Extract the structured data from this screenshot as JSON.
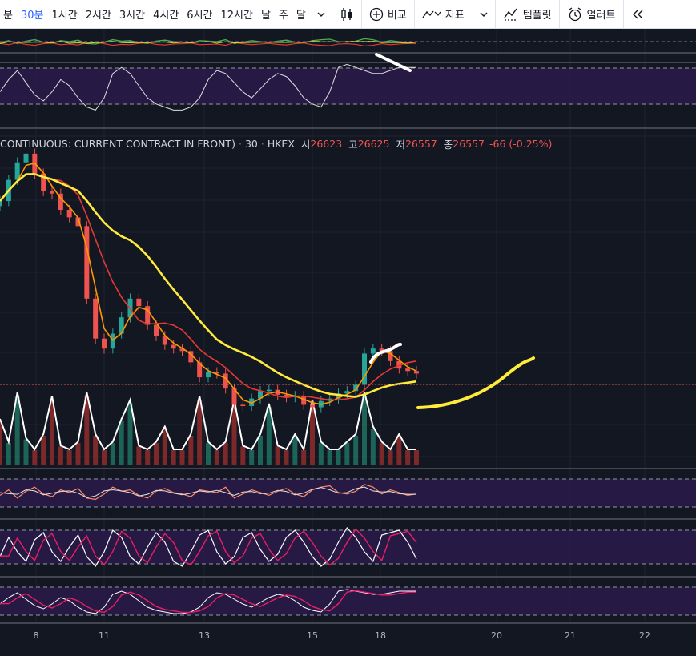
{
  "toolbar": {
    "intervals": [
      {
        "label": "분",
        "active": false
      },
      {
        "label": "30분",
        "active": true
      },
      {
        "label": "1시간",
        "active": false
      },
      {
        "label": "2시간",
        "active": false
      },
      {
        "label": "3시간",
        "active": false
      },
      {
        "label": "4시간",
        "active": false
      },
      {
        "label": "6시간",
        "active": false
      },
      {
        "label": "12시간",
        "active": false
      },
      {
        "label": "날",
        "active": false
      },
      {
        "label": "주",
        "active": false
      },
      {
        "label": "달",
        "active": false
      }
    ],
    "compare_label": "비교",
    "indicators_label": "지표",
    "templates_label": "템플릿",
    "alert_label": "얼러트"
  },
  "legend": {
    "symbol": "CONTINUOUS: CURRENT CONTRACT IN FRONT)",
    "interval": "30",
    "exchange": "HKEX",
    "open_label": "시",
    "open": "26623",
    "high_label": "고",
    "high": "26625",
    "low_label": "저",
    "low": "26557",
    "close_label": "종",
    "close": "26557",
    "change": "-66 (-0.25%)"
  },
  "colors": {
    "background": "#131722",
    "up": "#26a69a",
    "down": "#ef5350",
    "ma_fast": "#ff9800",
    "ma_mid": "#e53935",
    "ma_slow": "#ffeb3b",
    "oscillator_band": "#2a1b4a",
    "drawing_yellow": "#ffeb3b",
    "drawing_white": "#ffffff"
  },
  "chart_data": {
    "type": "candlestick",
    "title": "",
    "x_tick_labels": [
      "8",
      "11",
      "13",
      "15",
      "18",
      "20",
      "21",
      "22"
    ],
    "series": [
      {
        "name": "close",
        "values": [
          26480,
          26650,
          26790,
          26860,
          26700,
          26560,
          26540,
          26410,
          26350,
          26280,
          25700,
          25380,
          25300,
          25420,
          25550,
          25700,
          25640,
          25490,
          25400,
          25330,
          25300,
          25280,
          25190,
          25070,
          25110,
          25100,
          24980,
          24850,
          24840,
          24900,
          24960,
          24970,
          24930,
          24910,
          24920,
          24850,
          24830,
          24880,
          24900,
          24940,
          24960,
          25010,
          25260,
          25300,
          25280,
          25200,
          25140,
          25120,
          25100
        ]
      },
      {
        "name": "volume",
        "values": [
          60,
          30,
          95,
          35,
          20,
          40,
          90,
          25,
          20,
          30,
          95,
          40,
          20,
          30,
          60,
          85,
          25,
          20,
          30,
          50,
          20,
          20,
          40,
          90,
          30,
          20,
          30,
          85,
          25,
          20,
          40,
          80,
          25,
          20,
          40,
          20,
          85,
          30,
          20,
          20,
          30,
          40,
          95,
          50,
          30,
          20,
          40,
          20,
          20
        ]
      },
      {
        "name": "oscillator_1",
        "values": [
          40,
          60,
          30,
          55,
          70,
          45,
          35,
          60,
          50,
          65,
          30,
          25,
          45,
          70,
          55,
          60,
          40,
          30,
          55,
          65,
          50,
          45,
          35,
          60,
          55,
          50,
          70,
          30,
          45,
          60,
          50,
          40,
          55,
          65,
          45,
          35,
          60,
          70,
          75,
          50,
          45,
          55,
          80,
          70,
          45,
          60,
          50,
          40,
          45
        ]
      },
      {
        "name": "oscillator_2",
        "values": [
          30,
          70,
          40,
          20,
          65,
          80,
          40,
          20,
          50,
          75,
          30,
          10,
          40,
          85,
          70,
          30,
          15,
          50,
          80,
          60,
          20,
          10,
          40,
          75,
          85,
          40,
          15,
          30,
          70,
          80,
          45,
          20,
          35,
          70,
          85,
          60,
          30,
          10,
          25,
          60,
          90,
          70,
          40,
          20,
          75,
          80,
          85,
          60,
          25
        ]
      },
      {
        "name": "oscillator_3",
        "values": [
          40,
          60,
          75,
          55,
          35,
          25,
          40,
          60,
          50,
          30,
          15,
          10,
          30,
          70,
          80,
          70,
          50,
          30,
          20,
          15,
          10,
          10,
          15,
          30,
          60,
          75,
          70,
          55,
          40,
          30,
          45,
          60,
          70,
          65,
          50,
          30,
          20,
          15,
          40,
          80,
          85,
          80,
          75,
          70,
          70,
          75,
          80,
          80,
          80
        ]
      }
    ],
    "moving_averages": [
      "fast (orange)",
      "mid (red)",
      "slow (yellow)"
    ]
  }
}
